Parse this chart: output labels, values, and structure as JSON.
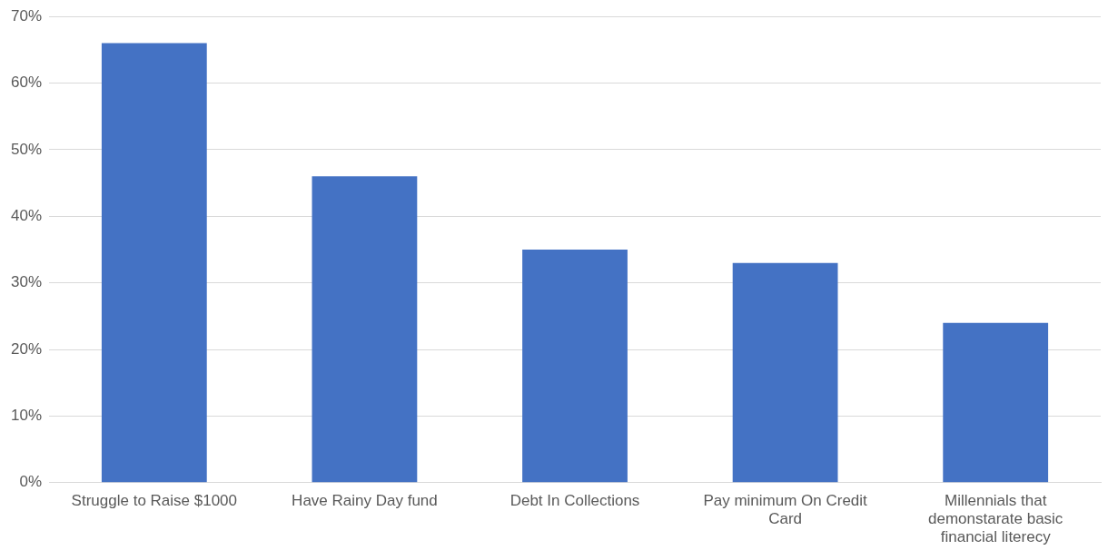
{
  "chart_data": {
    "type": "bar",
    "categories": [
      "Struggle to Raise $1000",
      "Have Rainy Day fund",
      "Debt In Collections",
      "Pay minimum On Credit Card",
      "Millennials that demonstarate basic financial literecy"
    ],
    "values": [
      66,
      46,
      35,
      33,
      24
    ],
    "color": "#4472c4",
    "ylim": [
      0,
      70
    ],
    "yticks": [
      {
        "value": 0,
        "label": "0%"
      },
      {
        "value": 10,
        "label": "10%"
      },
      {
        "value": 20,
        "label": "20%"
      },
      {
        "value": 30,
        "label": "30%"
      },
      {
        "value": 40,
        "label": "40%"
      },
      {
        "value": 50,
        "label": "50%"
      },
      {
        "value": 60,
        "label": "60%"
      },
      {
        "value": 70,
        "label": "70%"
      }
    ],
    "grid": "y"
  }
}
